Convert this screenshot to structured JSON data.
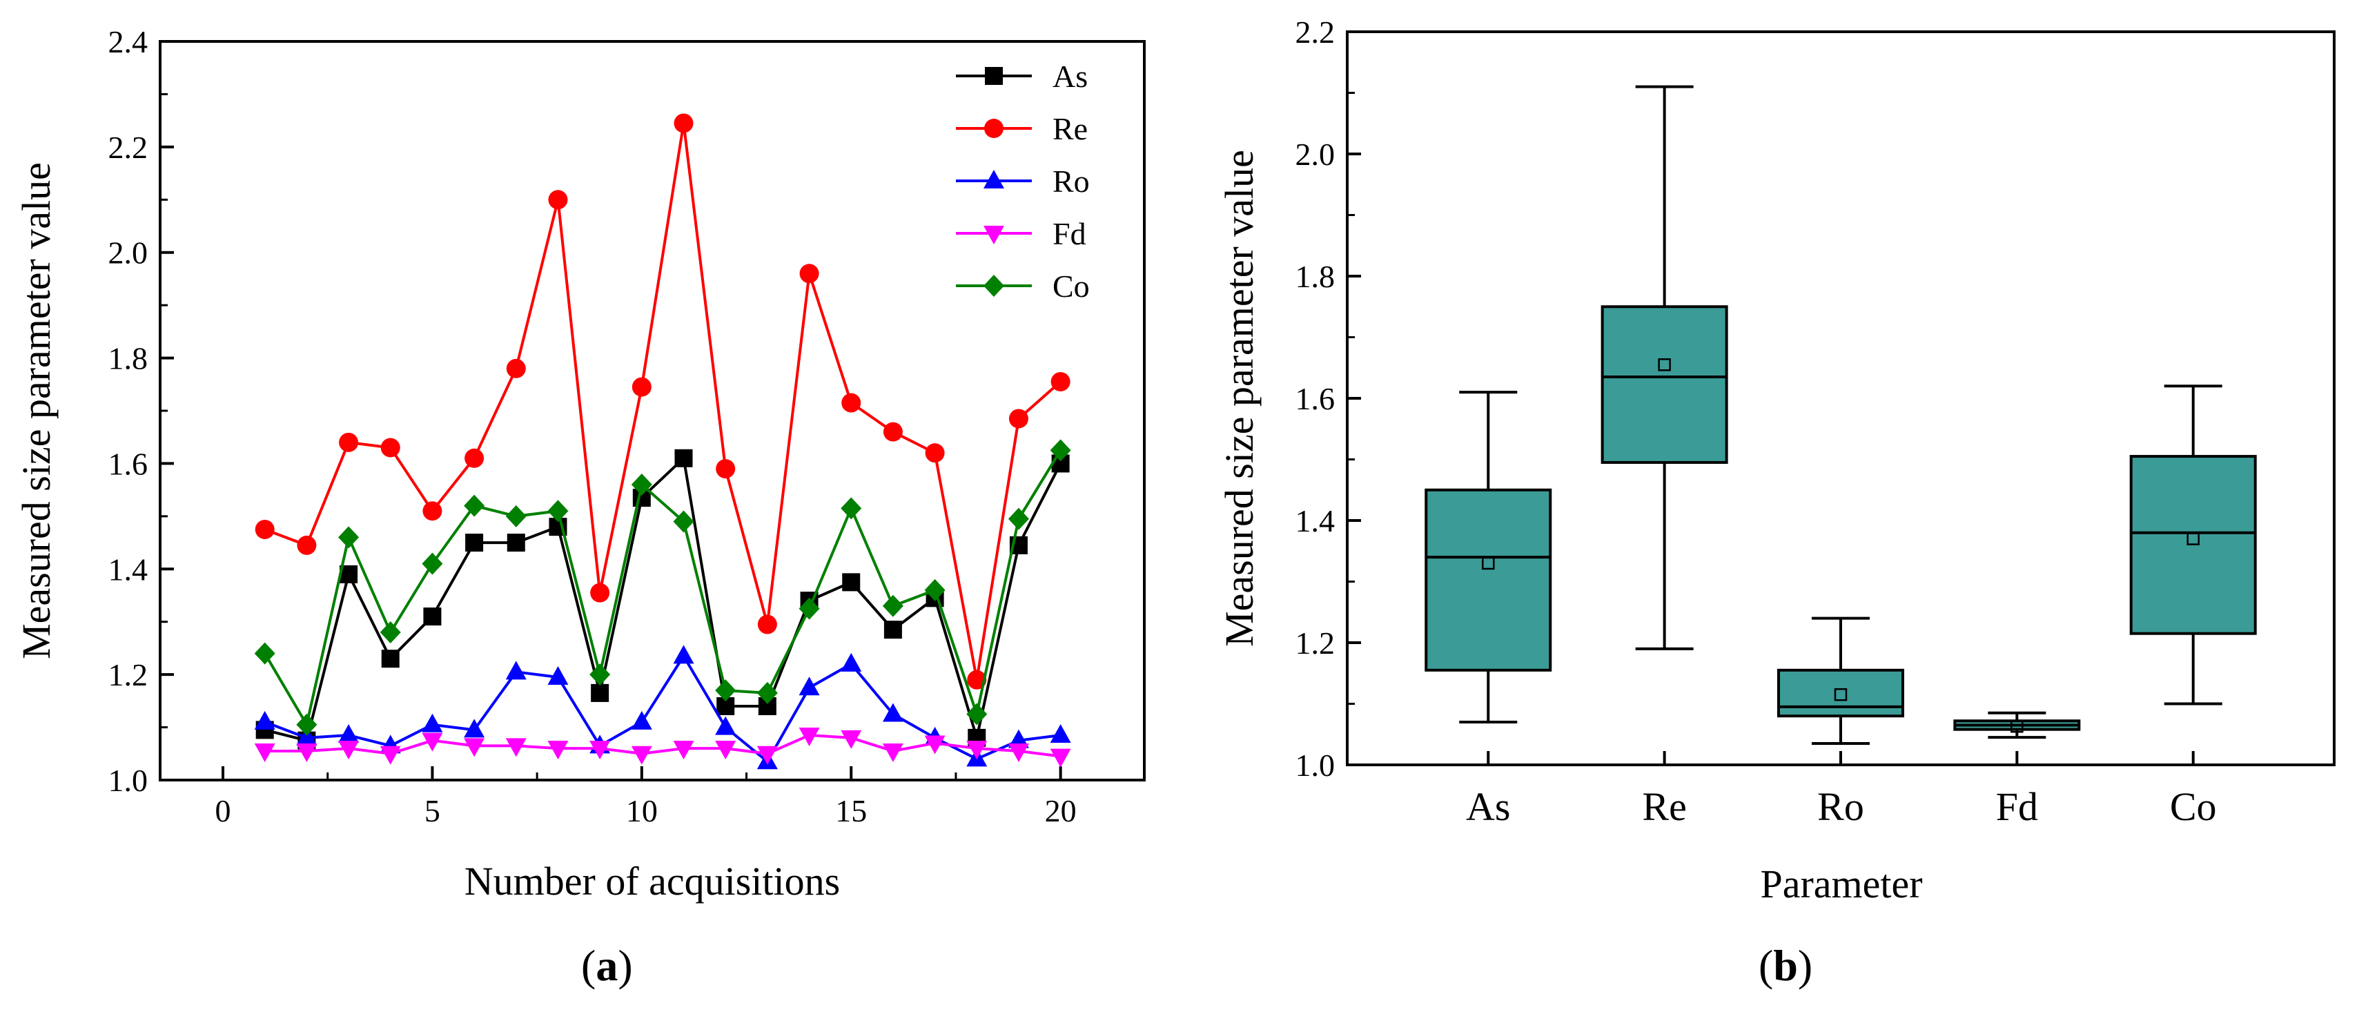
{
  "chart_data": [
    {
      "type": "line",
      "panel_label": "a",
      "title": "",
      "xlabel": "Number of acquisitions",
      "ylabel": "Measured size parameter value",
      "xlim": [
        -1.5,
        22
      ],
      "ylim": [
        1.0,
        2.4
      ],
      "xticks": [
        0,
        5,
        10,
        15,
        20
      ],
      "yticks": [
        1.0,
        1.2,
        1.4,
        1.6,
        1.8,
        2.0,
        2.2,
        2.4
      ],
      "legend_position": "top-right",
      "x": [
        1,
        2,
        3,
        4,
        5,
        6,
        7,
        8,
        9,
        10,
        11,
        12,
        13,
        14,
        15,
        16,
        17,
        18,
        19,
        20
      ],
      "series": [
        {
          "name": "As",
          "color": "#000000",
          "marker": "square",
          "values": [
            1.095,
            1.075,
            1.39,
            1.23,
            1.31,
            1.45,
            1.45,
            1.48,
            1.165,
            1.535,
            1.61,
            1.14,
            1.14,
            1.34,
            1.375,
            1.285,
            1.345,
            1.08,
            1.445,
            1.6
          ]
        },
        {
          "name": "Re",
          "color": "#ff0000",
          "marker": "circle",
          "values": [
            1.475,
            1.445,
            1.64,
            1.63,
            1.51,
            1.61,
            1.78,
            2.1,
            1.355,
            1.745,
            2.245,
            1.59,
            1.295,
            1.96,
            1.715,
            1.66,
            1.62,
            1.19,
            1.685,
            1.755
          ]
        },
        {
          "name": "Ro",
          "color": "#0000ff",
          "marker": "triangle-up",
          "values": [
            1.11,
            1.08,
            1.085,
            1.065,
            1.105,
            1.095,
            1.205,
            1.195,
            1.065,
            1.11,
            1.235,
            1.1,
            1.035,
            1.175,
            1.22,
            1.125,
            1.08,
            1.04,
            1.075,
            1.085
          ]
        },
        {
          "name": "Fd",
          "color": "#ff00ff",
          "marker": "triangle-down",
          "values": [
            1.055,
            1.055,
            1.06,
            1.05,
            1.075,
            1.065,
            1.065,
            1.06,
            1.06,
            1.05,
            1.06,
            1.06,
            1.05,
            1.085,
            1.08,
            1.055,
            1.07,
            1.06,
            1.055,
            1.045
          ]
        },
        {
          "name": "Co",
          "color": "#008000",
          "marker": "diamond",
          "values": [
            1.24,
            1.105,
            1.46,
            1.28,
            1.41,
            1.52,
            1.5,
            1.51,
            1.2,
            1.56,
            1.49,
            1.17,
            1.165,
            1.325,
            1.515,
            1.33,
            1.36,
            1.125,
            1.495,
            1.625
          ]
        }
      ]
    },
    {
      "type": "box",
      "panel_label": "b",
      "title": "",
      "xlabel": "Parameter",
      "ylabel": "Measured size parameter value",
      "ylim": [
        1.0,
        2.2
      ],
      "yticks": [
        1.0,
        1.2,
        1.4,
        1.6,
        1.8,
        2.0,
        2.2
      ],
      "box_color": "#3b9b96",
      "categories": [
        "As",
        "Re",
        "Ro",
        "Fd",
        "Co"
      ],
      "boxes": [
        {
          "name": "As",
          "whisker_low": 1.07,
          "q1": 1.155,
          "median": 1.34,
          "q3": 1.45,
          "whisker_high": 1.61,
          "mean": 1.33
        },
        {
          "name": "Re",
          "whisker_low": 1.19,
          "q1": 1.495,
          "median": 1.635,
          "q3": 1.75,
          "whisker_high": 2.11,
          "mean": 1.655
        },
        {
          "name": "Ro",
          "whisker_low": 1.035,
          "q1": 1.08,
          "median": 1.095,
          "q3": 1.155,
          "whisker_high": 1.24,
          "mean": 1.115
        },
        {
          "name": "Fd",
          "whisker_low": 1.045,
          "q1": 1.058,
          "median": 1.065,
          "q3": 1.072,
          "whisker_high": 1.085,
          "mean": 1.063
        },
        {
          "name": "Co",
          "whisker_low": 1.1,
          "q1": 1.215,
          "median": 1.38,
          "q3": 1.505,
          "whisker_high": 1.62,
          "mean": 1.37
        }
      ]
    }
  ]
}
